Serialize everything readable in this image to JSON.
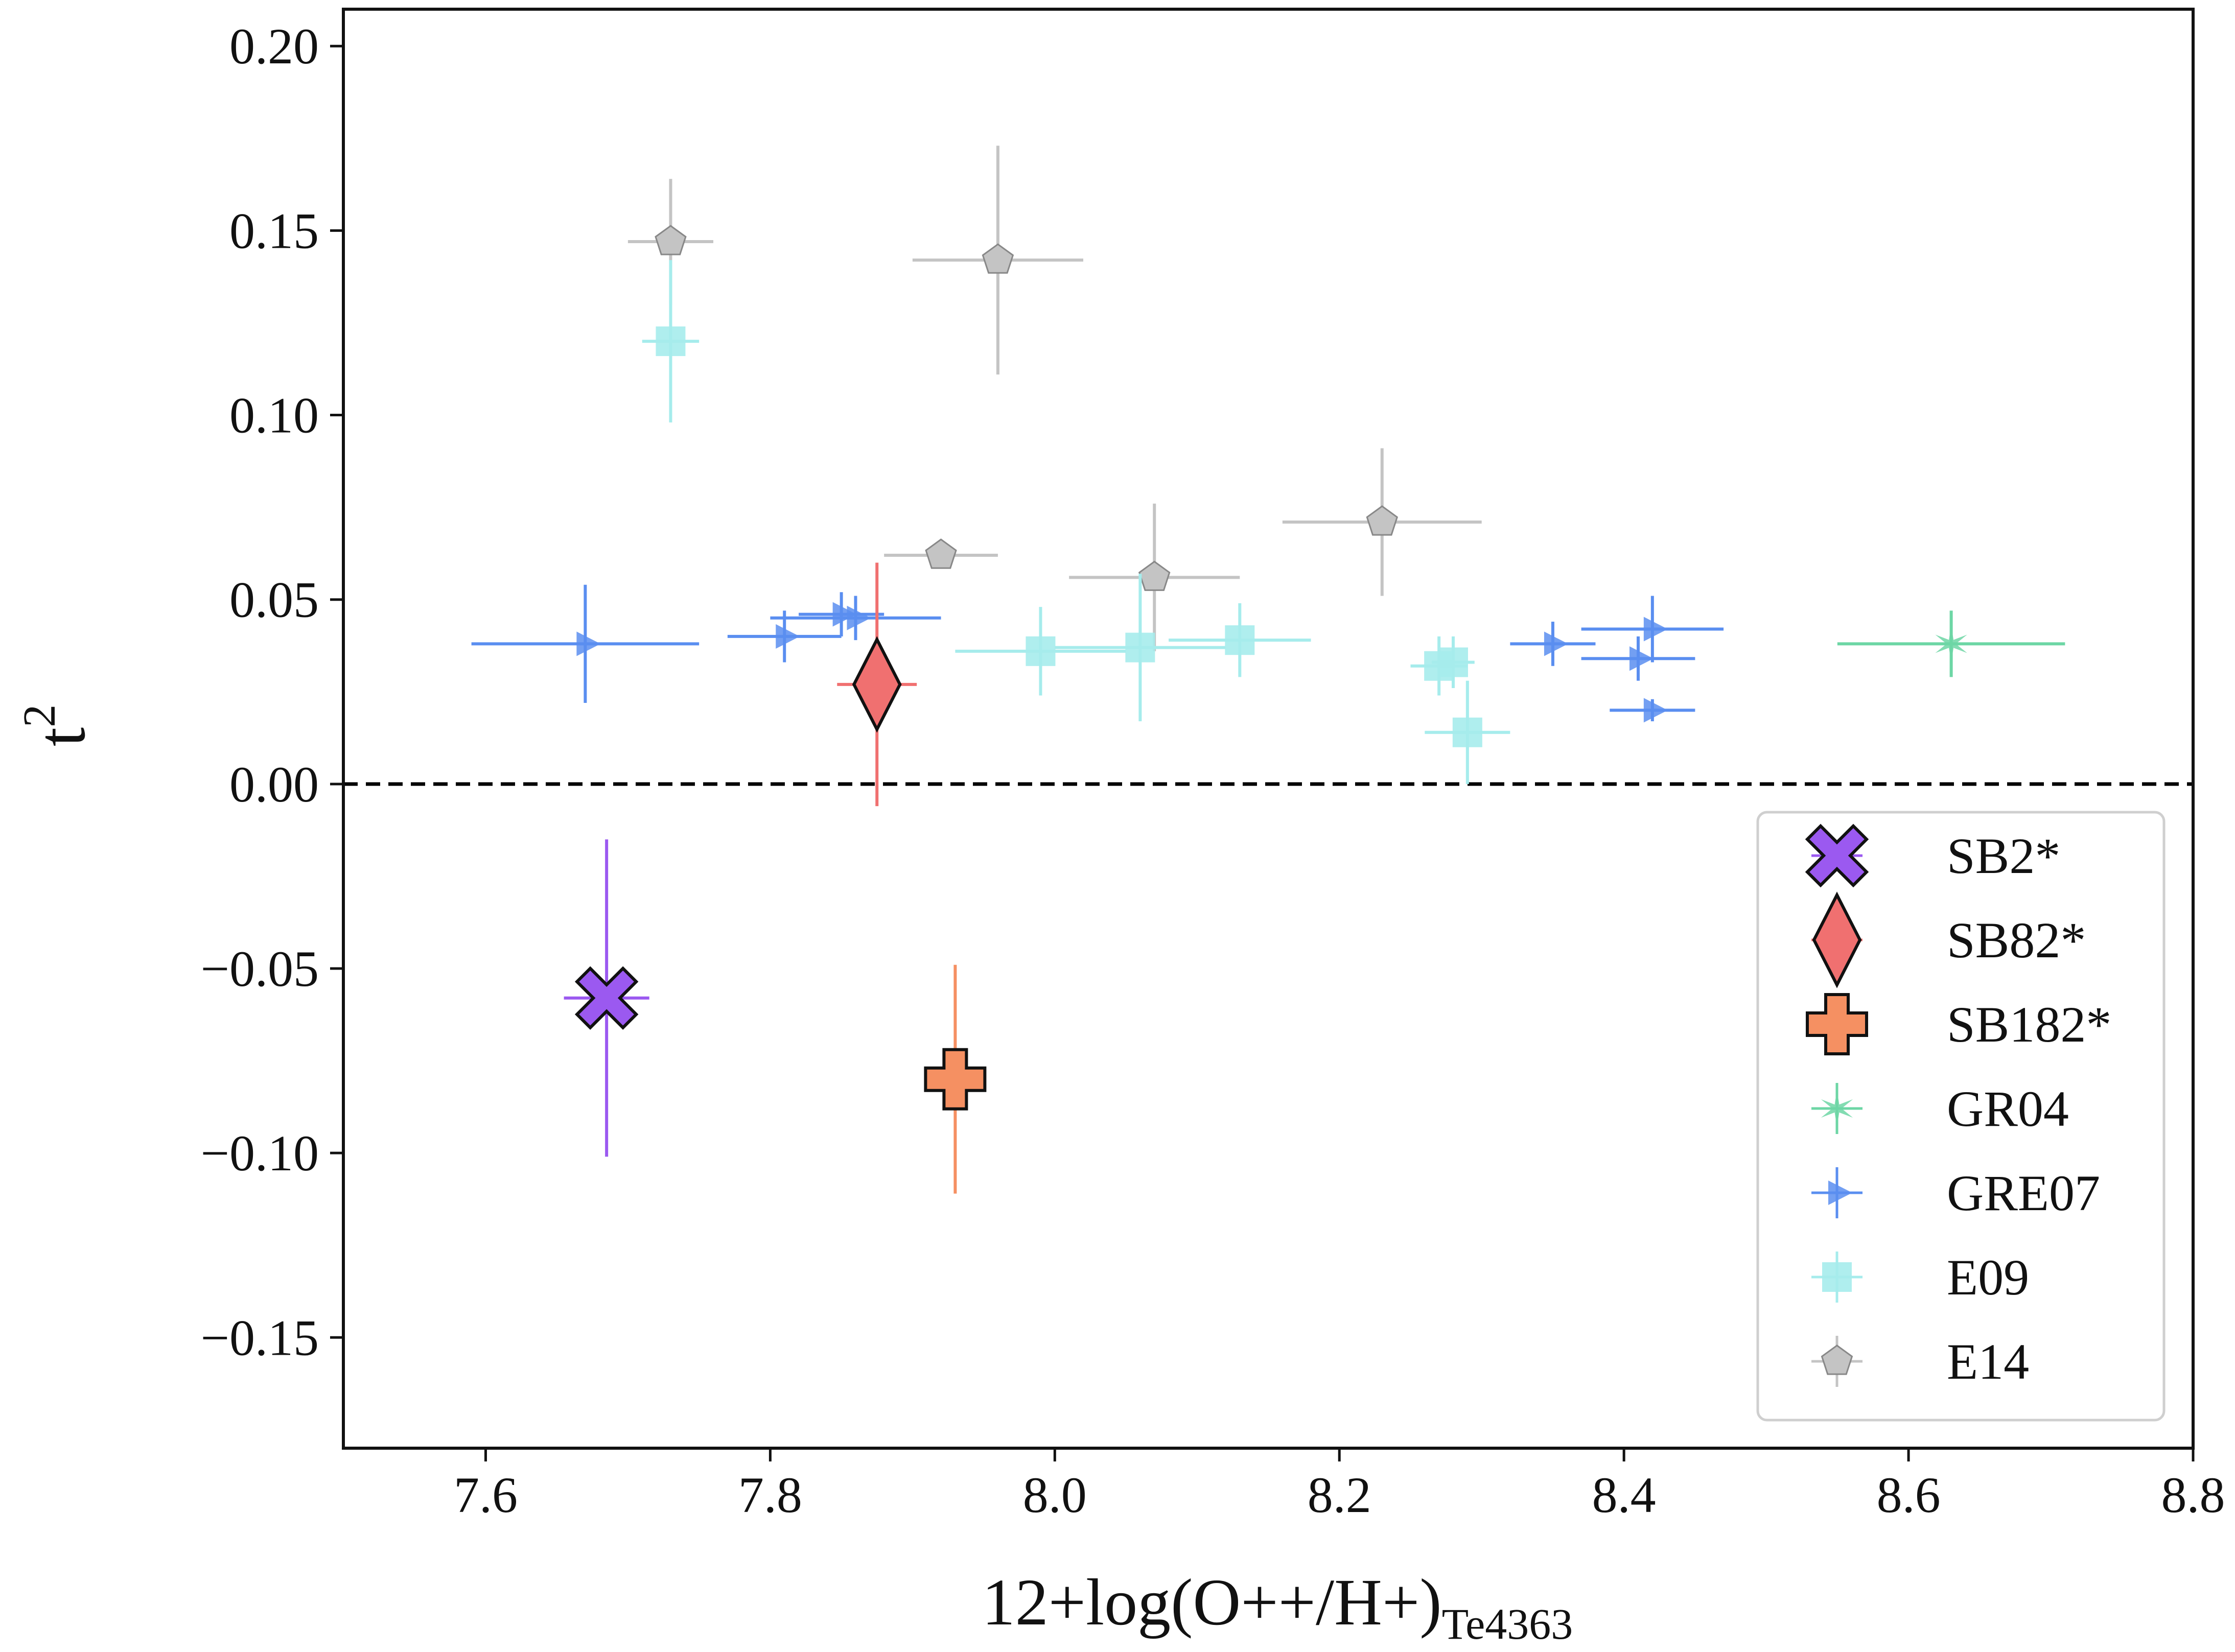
{
  "chart_data": {
    "type": "scatter",
    "xlabel": "12+log(O++/H+)",
    "xlabel_sub": "Te4363",
    "ylabel": "t",
    "ylabel_sup": "2",
    "xlim": [
      7.5,
      8.8
    ],
    "ylim": [
      -0.18,
      0.21
    ],
    "xticks": [
      7.6,
      7.8,
      8.0,
      8.2,
      8.4,
      8.6,
      8.8
    ],
    "xtick_labels": [
      "7.6",
      "7.8",
      "8.0",
      "8.2",
      "8.4",
      "8.6",
      "8.8"
    ],
    "yticks": [
      0.2,
      0.15,
      0.1,
      0.05,
      0.0,
      -0.05,
      -0.1,
      -0.15
    ],
    "ytick_labels": [
      "0.20",
      "0.15",
      "0.10",
      "0.05",
      "0.00",
      "−0.05",
      "−0.10",
      "−0.15"
    ],
    "reference_line": {
      "y": 0.0,
      "style": "dashed",
      "color": "#000000"
    },
    "grid": false,
    "legend_position": "lower-right",
    "series": [
      {
        "name": "SB2*",
        "marker": "x-cross",
        "color": "#9b59f0",
        "points": [
          {
            "x": 7.685,
            "y": -0.058,
            "xerr": 0.03,
            "yerr": 0.043
          }
        ]
      },
      {
        "name": "SB82*",
        "marker": "diamond",
        "color": "#f07070",
        "points": [
          {
            "x": 7.875,
            "y": 0.027,
            "xerr": 0.028,
            "yerr": 0.033
          }
        ]
      },
      {
        "name": "SB182*",
        "marker": "plus",
        "color": "#f59062",
        "points": [
          {
            "x": 7.93,
            "y": -0.08,
            "xerr": 0.02,
            "yerr": 0.031
          }
        ]
      },
      {
        "name": "GR04",
        "marker": "star",
        "color": "#6dd6a5",
        "points": [
          {
            "x": 8.63,
            "y": 0.038,
            "xerr": 0.08,
            "yerr": 0.009
          }
        ]
      },
      {
        "name": "GRE07",
        "marker": "triangle-right",
        "color": "#5a8ef0",
        "points": [
          {
            "x": 7.67,
            "y": 0.038,
            "xerr": 0.08,
            "yerr": 0.016
          },
          {
            "x": 7.81,
            "y": 0.04,
            "xerr": 0.04,
            "yerr": 0.007
          },
          {
            "x": 7.85,
            "y": 0.046,
            "xerr": 0.03,
            "yerr": 0.006
          },
          {
            "x": 7.86,
            "y": 0.045,
            "xerr": 0.06,
            "yerr": 0.006
          },
          {
            "x": 8.35,
            "y": 0.038,
            "xerr": 0.03,
            "yerr": 0.006
          },
          {
            "x": 8.41,
            "y": 0.034,
            "xerr": 0.04,
            "yerr": 0.006
          },
          {
            "x": 8.42,
            "y": 0.042,
            "xerr": 0.05,
            "yerr": 0.009
          },
          {
            "x": 8.42,
            "y": 0.02,
            "xerr": 0.03,
            "yerr": 0.003
          }
        ]
      },
      {
        "name": "E09",
        "marker": "square",
        "color": "#a6ecec",
        "points": [
          {
            "x": 7.73,
            "y": 0.12,
            "xerr": 0.02,
            "yerr": 0.022
          },
          {
            "x": 7.99,
            "y": 0.036,
            "xerr": 0.06,
            "yerr": 0.012
          },
          {
            "x": 8.06,
            "y": 0.037,
            "xerr": 0.06,
            "yerr": 0.02
          },
          {
            "x": 8.13,
            "y": 0.039,
            "xerr": 0.05,
            "yerr": 0.01
          },
          {
            "x": 8.27,
            "y": 0.032,
            "xerr": 0.02,
            "yerr": 0.008
          },
          {
            "x": 8.28,
            "y": 0.033,
            "xerr": 0.015,
            "yerr": 0.007
          },
          {
            "x": 8.29,
            "y": 0.014,
            "xerr": 0.03,
            "yerr": 0.014
          }
        ]
      },
      {
        "name": "E14",
        "marker": "pentagon",
        "color": "#c4c4c4",
        "points": [
          {
            "x": 7.73,
            "y": 0.147,
            "xerr": 0.03,
            "yerr": 0.017
          },
          {
            "x": 7.92,
            "y": 0.062,
            "xerr": 0.04,
            "yerr": 0.003
          },
          {
            "x": 7.96,
            "y": 0.142,
            "xerr": 0.06,
            "yerr": 0.031
          },
          {
            "x": 8.07,
            "y": 0.056,
            "xerr": 0.06,
            "yerr": 0.02
          },
          {
            "x": 8.23,
            "y": 0.071,
            "xerr": 0.07,
            "yerr": 0.02
          }
        ]
      }
    ]
  }
}
